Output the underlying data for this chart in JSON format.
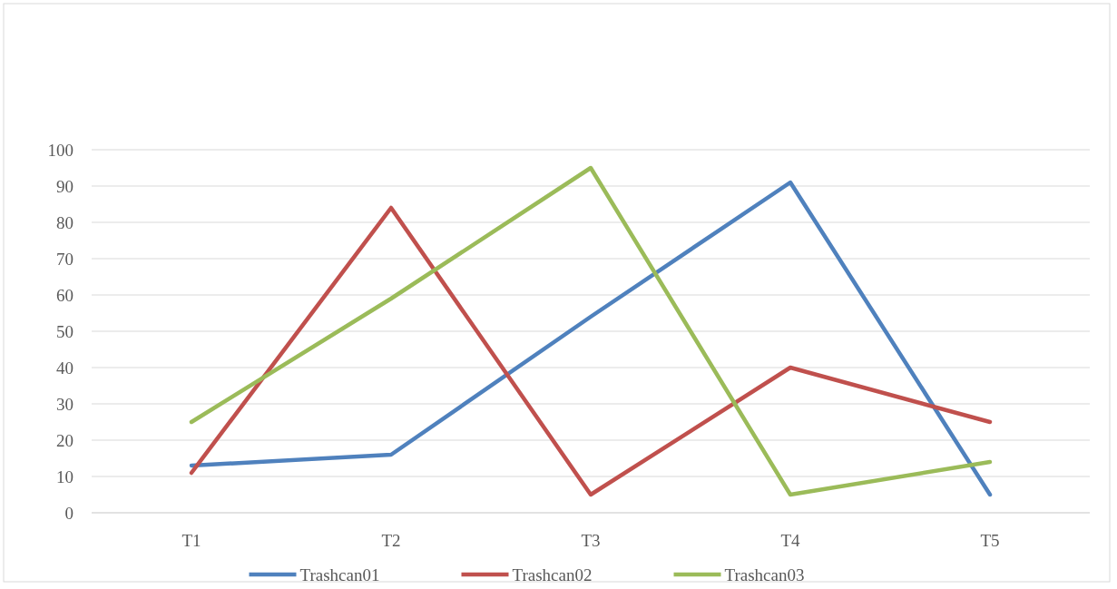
{
  "chart_data": {
    "type": "line",
    "categories": [
      "T1",
      "T2",
      "T3",
      "T4",
      "T5"
    ],
    "series": [
      {
        "name": "Trashcan01",
        "color": "#4f81bd",
        "values": [
          13,
          16,
          54,
          91,
          5
        ]
      },
      {
        "name": "Trashcan02",
        "color": "#c0504d",
        "values": [
          11,
          84,
          5,
          40,
          25
        ]
      },
      {
        "name": "Trashcan03",
        "color": "#9bbb59",
        "values": [
          25,
          59,
          95,
          5,
          14
        ]
      }
    ],
    "ylim": [
      0,
      100
    ],
    "yticks": [
      0,
      10,
      20,
      30,
      40,
      50,
      60,
      70,
      80,
      90,
      100
    ],
    "grid": "y",
    "legend": "bottom",
    "marker": "none",
    "line_style": "solid"
  }
}
